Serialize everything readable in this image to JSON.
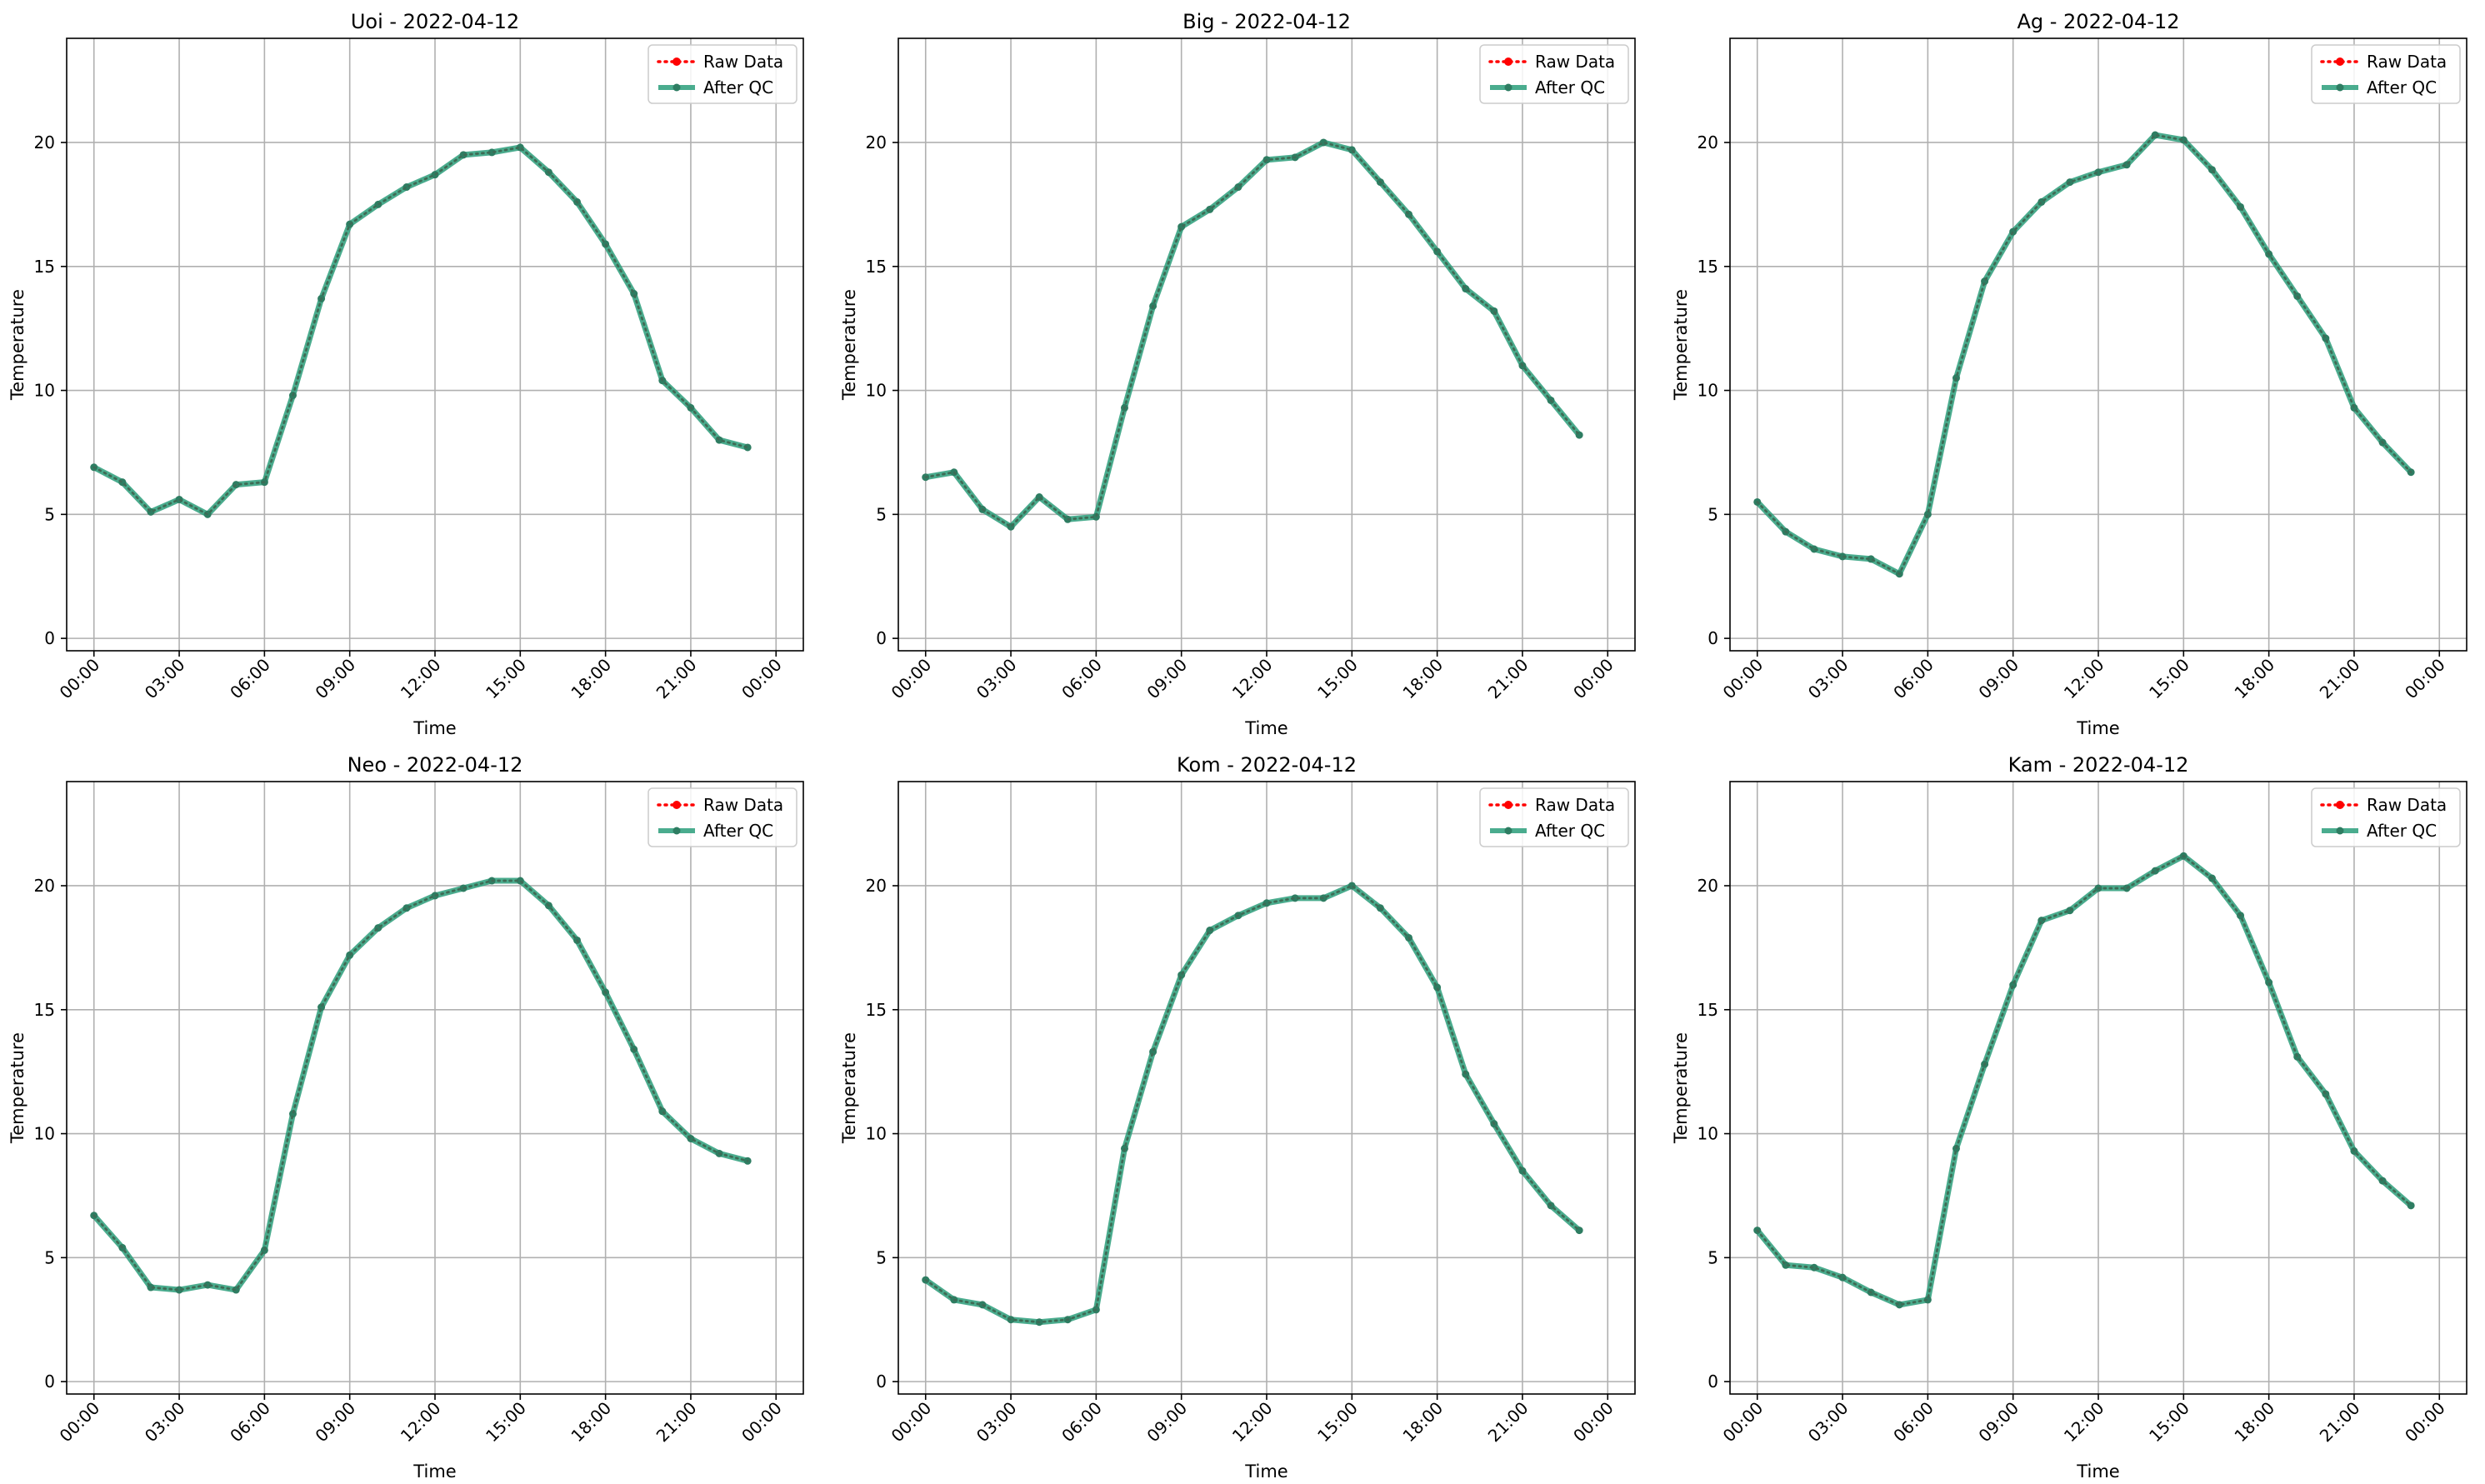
{
  "chart_data": [
    {
      "type": "line",
      "title": "Uoi - 2022-04-12",
      "xlabel": "Time",
      "ylabel": "Temperature",
      "xticks": [
        "00:00",
        "03:00",
        "06:00",
        "09:00",
        "12:00",
        "15:00",
        "18:00",
        "21:00",
        "00:00"
      ],
      "xlim": [
        "2022-04-12 00:00",
        "2022-04-13 00:00"
      ],
      "yticks": [
        0,
        5,
        10,
        15,
        20
      ],
      "ylim": [
        -0.5,
        24.2
      ],
      "grid": true,
      "legend_position": "top-right",
      "x": [
        "00:00",
        "01:00",
        "02:00",
        "03:00",
        "04:00",
        "05:00",
        "06:00",
        "07:00",
        "08:00",
        "09:00",
        "10:00",
        "11:00",
        "12:00",
        "13:00",
        "14:00",
        "15:00",
        "16:00",
        "17:00",
        "18:00",
        "19:00",
        "20:00",
        "21:00",
        "22:00",
        "23:00"
      ],
      "series": [
        {
          "name": "Raw Data",
          "color": "#ff0000",
          "style": "dotted",
          "values": [
            6.9,
            6.3,
            5.1,
            5.6,
            5.0,
            6.2,
            6.3,
            9.8,
            13.7,
            16.7,
            17.5,
            18.2,
            18.7,
            19.5,
            19.6,
            19.8,
            18.8,
            17.6,
            15.9,
            13.9,
            10.4,
            9.3,
            8.0,
            7.7
          ]
        },
        {
          "name": "After QC",
          "color": "#2a9d7a",
          "style": "solid",
          "values": [
            6.9,
            6.3,
            5.1,
            5.6,
            5.0,
            6.2,
            6.3,
            9.8,
            13.7,
            16.7,
            17.5,
            18.2,
            18.7,
            19.5,
            19.6,
            19.8,
            18.8,
            17.6,
            15.9,
            13.9,
            10.4,
            9.3,
            8.0,
            7.7
          ]
        }
      ]
    },
    {
      "type": "line",
      "title": "Big - 2022-04-12",
      "xlabel": "Time",
      "ylabel": "Temperature",
      "xticks": [
        "00:00",
        "03:00",
        "06:00",
        "09:00",
        "12:00",
        "15:00",
        "18:00",
        "21:00",
        "00:00"
      ],
      "xlim": [
        "2022-04-12 00:00",
        "2022-04-13 00:00"
      ],
      "yticks": [
        0,
        5,
        10,
        15,
        20
      ],
      "ylim": [
        -0.5,
        24.2
      ],
      "grid": true,
      "legend_position": "top-right",
      "x": [
        "00:00",
        "01:00",
        "02:00",
        "03:00",
        "04:00",
        "05:00",
        "06:00",
        "07:00",
        "08:00",
        "09:00",
        "10:00",
        "11:00",
        "12:00",
        "13:00",
        "14:00",
        "15:00",
        "16:00",
        "17:00",
        "18:00",
        "19:00",
        "20:00",
        "21:00",
        "22:00",
        "23:00"
      ],
      "series": [
        {
          "name": "Raw Data",
          "color": "#ff0000",
          "style": "dotted",
          "values": [
            6.5,
            6.7,
            5.2,
            4.5,
            5.7,
            4.8,
            4.9,
            9.3,
            13.4,
            16.6,
            17.3,
            18.2,
            19.3,
            19.4,
            20.0,
            19.7,
            18.4,
            17.1,
            15.6,
            14.1,
            13.2,
            11.0,
            9.6,
            8.2
          ]
        },
        {
          "name": "After QC",
          "color": "#2a9d7a",
          "style": "solid",
          "values": [
            6.5,
            6.7,
            5.2,
            4.5,
            5.7,
            4.8,
            4.9,
            9.3,
            13.4,
            16.6,
            17.3,
            18.2,
            19.3,
            19.4,
            20.0,
            19.7,
            18.4,
            17.1,
            15.6,
            14.1,
            13.2,
            11.0,
            9.6,
            8.2
          ]
        }
      ]
    },
    {
      "type": "line",
      "title": "Ag - 2022-04-12",
      "xlabel": "Time",
      "ylabel": "Temperature",
      "xticks": [
        "00:00",
        "03:00",
        "06:00",
        "09:00",
        "12:00",
        "15:00",
        "18:00",
        "21:00",
        "00:00"
      ],
      "xlim": [
        "2022-04-12 00:00",
        "2022-04-13 00:00"
      ],
      "yticks": [
        0,
        5,
        10,
        15,
        20
      ],
      "ylim": [
        -0.5,
        24.2
      ],
      "grid": true,
      "legend_position": "top-right",
      "x": [
        "00:00",
        "01:00",
        "02:00",
        "03:00",
        "04:00",
        "05:00",
        "06:00",
        "07:00",
        "08:00",
        "09:00",
        "10:00",
        "11:00",
        "12:00",
        "13:00",
        "14:00",
        "15:00",
        "16:00",
        "17:00",
        "18:00",
        "19:00",
        "20:00",
        "21:00",
        "22:00",
        "23:00"
      ],
      "series": [
        {
          "name": "Raw Data",
          "color": "#ff0000",
          "style": "dotted",
          "values": [
            5.5,
            4.3,
            3.6,
            3.3,
            3.2,
            2.6,
            5.0,
            10.5,
            14.4,
            16.4,
            17.6,
            18.4,
            18.8,
            19.1,
            20.3,
            20.1,
            18.9,
            17.4,
            15.5,
            13.8,
            12.1,
            9.3,
            7.9,
            6.7
          ]
        },
        {
          "name": "After QC",
          "color": "#2a9d7a",
          "style": "solid",
          "values": [
            5.5,
            4.3,
            3.6,
            3.3,
            3.2,
            2.6,
            5.0,
            10.5,
            14.4,
            16.4,
            17.6,
            18.4,
            18.8,
            19.1,
            20.3,
            20.1,
            18.9,
            17.4,
            15.5,
            13.8,
            12.1,
            9.3,
            7.9,
            6.7
          ]
        }
      ]
    },
    {
      "type": "line",
      "title": "Neo - 2022-04-12",
      "xlabel": "Time",
      "ylabel": "Temperature",
      "xticks": [
        "00:00",
        "03:00",
        "06:00",
        "09:00",
        "12:00",
        "15:00",
        "18:00",
        "21:00",
        "00:00"
      ],
      "xlim": [
        "2022-04-12 00:00",
        "2022-04-13 00:00"
      ],
      "yticks": [
        0,
        5,
        10,
        15,
        20
      ],
      "ylim": [
        -0.5,
        24.2
      ],
      "grid": true,
      "legend_position": "top-right",
      "x": [
        "00:00",
        "01:00",
        "02:00",
        "03:00",
        "04:00",
        "05:00",
        "06:00",
        "07:00",
        "08:00",
        "09:00",
        "10:00",
        "11:00",
        "12:00",
        "13:00",
        "14:00",
        "15:00",
        "16:00",
        "17:00",
        "18:00",
        "19:00",
        "20:00",
        "21:00",
        "22:00",
        "23:00"
      ],
      "series": [
        {
          "name": "Raw Data",
          "color": "#ff0000",
          "style": "dotted",
          "values": [
            6.7,
            5.4,
            3.8,
            3.7,
            3.9,
            3.7,
            5.3,
            10.8,
            15.1,
            17.2,
            18.3,
            19.1,
            19.6,
            19.9,
            20.2,
            20.2,
            19.2,
            17.8,
            15.7,
            13.4,
            10.9,
            9.8,
            9.2,
            8.9
          ]
        },
        {
          "name": "After QC",
          "color": "#2a9d7a",
          "style": "solid",
          "values": [
            6.7,
            5.4,
            3.8,
            3.7,
            3.9,
            3.7,
            5.3,
            10.8,
            15.1,
            17.2,
            18.3,
            19.1,
            19.6,
            19.9,
            20.2,
            20.2,
            19.2,
            17.8,
            15.7,
            13.4,
            10.9,
            9.8,
            9.2,
            8.9
          ]
        }
      ]
    },
    {
      "type": "line",
      "title": "Kom - 2022-04-12",
      "xlabel": "Time",
      "ylabel": "Temperature",
      "xticks": [
        "00:00",
        "03:00",
        "06:00",
        "09:00",
        "12:00",
        "15:00",
        "18:00",
        "21:00",
        "00:00"
      ],
      "xlim": [
        "2022-04-12 00:00",
        "2022-04-13 00:00"
      ],
      "yticks": [
        0,
        5,
        10,
        15,
        20
      ],
      "ylim": [
        -0.5,
        24.2
      ],
      "grid": true,
      "legend_position": "top-right",
      "x": [
        "00:00",
        "01:00",
        "02:00",
        "03:00",
        "04:00",
        "05:00",
        "06:00",
        "07:00",
        "08:00",
        "09:00",
        "10:00",
        "11:00",
        "12:00",
        "13:00",
        "14:00",
        "15:00",
        "16:00",
        "17:00",
        "18:00",
        "19:00",
        "20:00",
        "21:00",
        "22:00",
        "23:00"
      ],
      "series": [
        {
          "name": "Raw Data",
          "color": "#ff0000",
          "style": "dotted",
          "values": [
            4.1,
            3.3,
            3.1,
            2.5,
            2.4,
            2.5,
            2.9,
            9.4,
            13.3,
            16.4,
            18.2,
            18.8,
            19.3,
            19.5,
            19.5,
            20.0,
            19.1,
            17.9,
            15.9,
            12.4,
            10.4,
            8.5,
            7.1,
            6.1
          ]
        },
        {
          "name": "After QC",
          "color": "#2a9d7a",
          "style": "solid",
          "values": [
            4.1,
            3.3,
            3.1,
            2.5,
            2.4,
            2.5,
            2.9,
            9.4,
            13.3,
            16.4,
            18.2,
            18.8,
            19.3,
            19.5,
            19.5,
            20.0,
            19.1,
            17.9,
            15.9,
            12.4,
            10.4,
            8.5,
            7.1,
            6.1
          ]
        }
      ]
    },
    {
      "type": "line",
      "title": "Kam - 2022-04-12",
      "xlabel": "Time",
      "ylabel": "Temperature",
      "xticks": [
        "00:00",
        "03:00",
        "06:00",
        "09:00",
        "12:00",
        "15:00",
        "18:00",
        "21:00",
        "00:00"
      ],
      "xlim": [
        "2022-04-12 00:00",
        "2022-04-13 00:00"
      ],
      "yticks": [
        0,
        5,
        10,
        15,
        20
      ],
      "ylim": [
        -0.5,
        24.2
      ],
      "grid": true,
      "legend_position": "top-right",
      "x": [
        "00:00",
        "01:00",
        "02:00",
        "03:00",
        "04:00",
        "05:00",
        "06:00",
        "07:00",
        "08:00",
        "09:00",
        "10:00",
        "11:00",
        "12:00",
        "13:00",
        "14:00",
        "15:00",
        "16:00",
        "17:00",
        "18:00",
        "19:00",
        "20:00",
        "21:00",
        "22:00",
        "23:00"
      ],
      "series": [
        {
          "name": "Raw Data",
          "color": "#ff0000",
          "style": "dotted",
          "values": [
            6.1,
            4.7,
            4.6,
            4.2,
            3.6,
            3.1,
            3.3,
            9.4,
            12.8,
            16.0,
            18.6,
            19.0,
            19.9,
            19.9,
            20.6,
            21.2,
            20.3,
            18.8,
            16.1,
            13.1,
            11.6,
            9.3,
            8.1,
            7.1
          ]
        },
        {
          "name": "After QC",
          "color": "#2a9d7a",
          "style": "solid",
          "values": [
            6.1,
            4.7,
            4.6,
            4.2,
            3.6,
            3.1,
            3.3,
            9.4,
            12.8,
            16.0,
            18.6,
            19.0,
            19.9,
            19.9,
            20.6,
            21.2,
            20.3,
            18.8,
            16.1,
            13.1,
            11.6,
            9.3,
            8.1,
            7.1
          ]
        }
      ]
    }
  ]
}
